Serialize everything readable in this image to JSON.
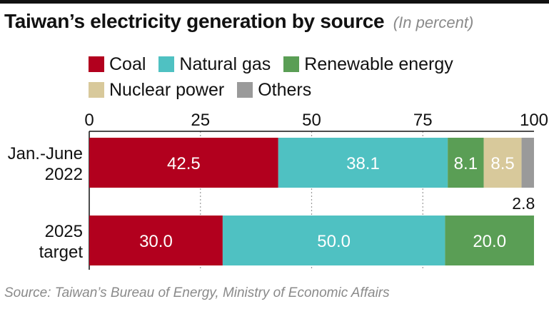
{
  "title": "Taiwan’s electricity generation by source",
  "title_unit": "(In percent)",
  "legend": [
    {
      "label": "Coal",
      "color": "#b2001e"
    },
    {
      "label": "Natural gas",
      "color": "#4fc1c2"
    },
    {
      "label": "Renewable energy",
      "color": "#5a9e55"
    },
    {
      "label": "Nuclear power",
      "color": "#d8c99b"
    },
    {
      "label": "Others",
      "color": "#9a9a9a"
    }
  ],
  "source": "Source: Taiwan’s Bureau of Energy, Ministry of Economic Affairs",
  "chart_data": {
    "type": "bar",
    "orientation": "horizontal",
    "stacked": true,
    "title": "Taiwan’s electricity generation by source",
    "subtitle": "(In percent)",
    "xlim": [
      0,
      100
    ],
    "xticks": [
      0,
      25,
      50,
      75,
      100
    ],
    "grid": true,
    "legend_position": "top",
    "categories": [
      {
        "line1": "Jan.-June",
        "line2": "2022"
      },
      {
        "line1": "2025",
        "line2": "target"
      }
    ],
    "series": [
      {
        "name": "Coal",
        "values": [
          42.5,
          30.0
        ],
        "labels": [
          "42.5",
          "30.0"
        ]
      },
      {
        "name": "Natural gas",
        "values": [
          38.1,
          50.0
        ],
        "labels": [
          "38.1",
          "50.0"
        ]
      },
      {
        "name": "Renewable energy",
        "values": [
          8.1,
          20.0
        ],
        "labels": [
          "8.1",
          "20.0"
        ]
      },
      {
        "name": "Nuclear power",
        "values": [
          8.5,
          0
        ],
        "labels": [
          "8.5",
          ""
        ]
      },
      {
        "name": "Others",
        "values": [
          2.8,
          0
        ],
        "labels": [
          "2.8",
          ""
        ]
      }
    ],
    "outside_label_series": "Others"
  }
}
